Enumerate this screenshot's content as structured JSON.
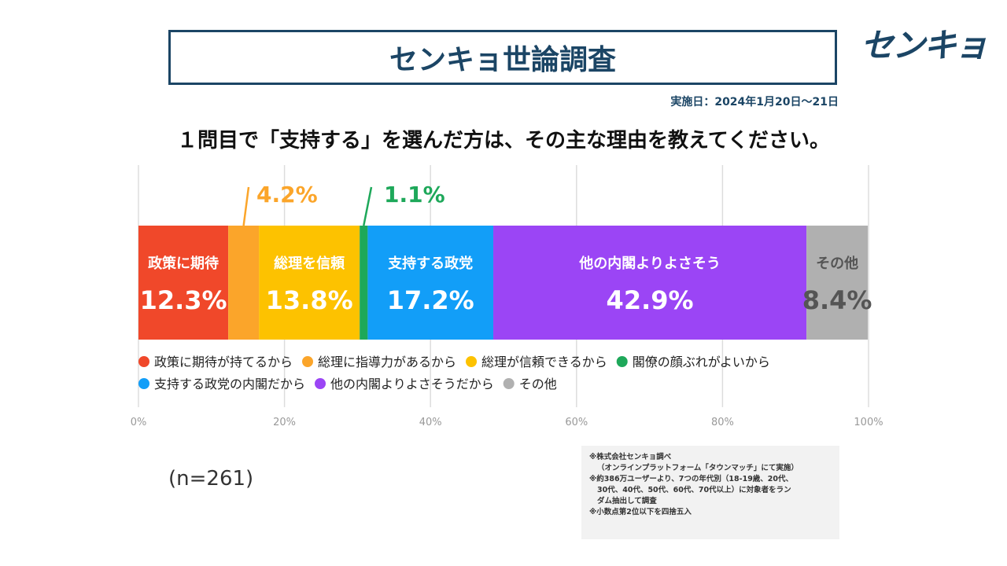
{
  "header": {
    "title": "センキョ世論調査",
    "logo_text": "センキョ",
    "date": "実施日：2024年1月20日～21日",
    "question": "１問目で「支持する」を選んだ方は、その主な理由を教えてください。"
  },
  "chart_data": {
    "type": "bar",
    "orientation": "horizontal-stacked-100",
    "xlim": [
      0,
      100
    ],
    "x_ticks": [
      "0%",
      "20%",
      "40%",
      "60%",
      "80%",
      "100%"
    ],
    "grid": true,
    "segments": [
      {
        "legend": "政策に期待が持てるから",
        "label": "政策に期待",
        "value": 12.3,
        "display": "12.3%",
        "color": "#f0482a",
        "callout": false
      },
      {
        "legend": "総理に指導力があるから",
        "label": "",
        "value": 4.2,
        "display": "4.2%",
        "color": "#fba52a",
        "callout": true
      },
      {
        "legend": "総理が信頼できるから",
        "label": "総理を信頼",
        "value": 13.8,
        "display": "13.8%",
        "color": "#fdc200",
        "callout": false
      },
      {
        "legend": "閣僚の顔ぶれがよいから",
        "label": "",
        "value": 1.1,
        "display": "1.1%",
        "color": "#1ea85a",
        "callout": true
      },
      {
        "legend": "支持する政党の内閣だから",
        "label": "支持する政党",
        "value": 17.2,
        "display": "17.2%",
        "color": "#129ef8",
        "callout": false
      },
      {
        "legend": "他の内閣よりよさそうだから",
        "label": "他の内閣よりよさそう",
        "value": 42.9,
        "display": "42.9%",
        "color": "#9b45f5",
        "callout": false
      },
      {
        "legend": "その他",
        "label": "その他",
        "value": 8.4,
        "display": "8.4%",
        "color": "#b0b0b0",
        "callout": false
      }
    ]
  },
  "sample": "(n=261)",
  "notes": [
    "※株式会社センキョ調べ",
    "（オンラインプラットフォーム「タウンマッチ」にて実施）",
    "※約386万ユーザーより、7つの年代別（18-19歳、20代、",
    "30代、40代、50代、60代、70代以上）に対象者をラン",
    "ダム抽出して調査",
    "※小数点第2位以下を四捨五入"
  ]
}
